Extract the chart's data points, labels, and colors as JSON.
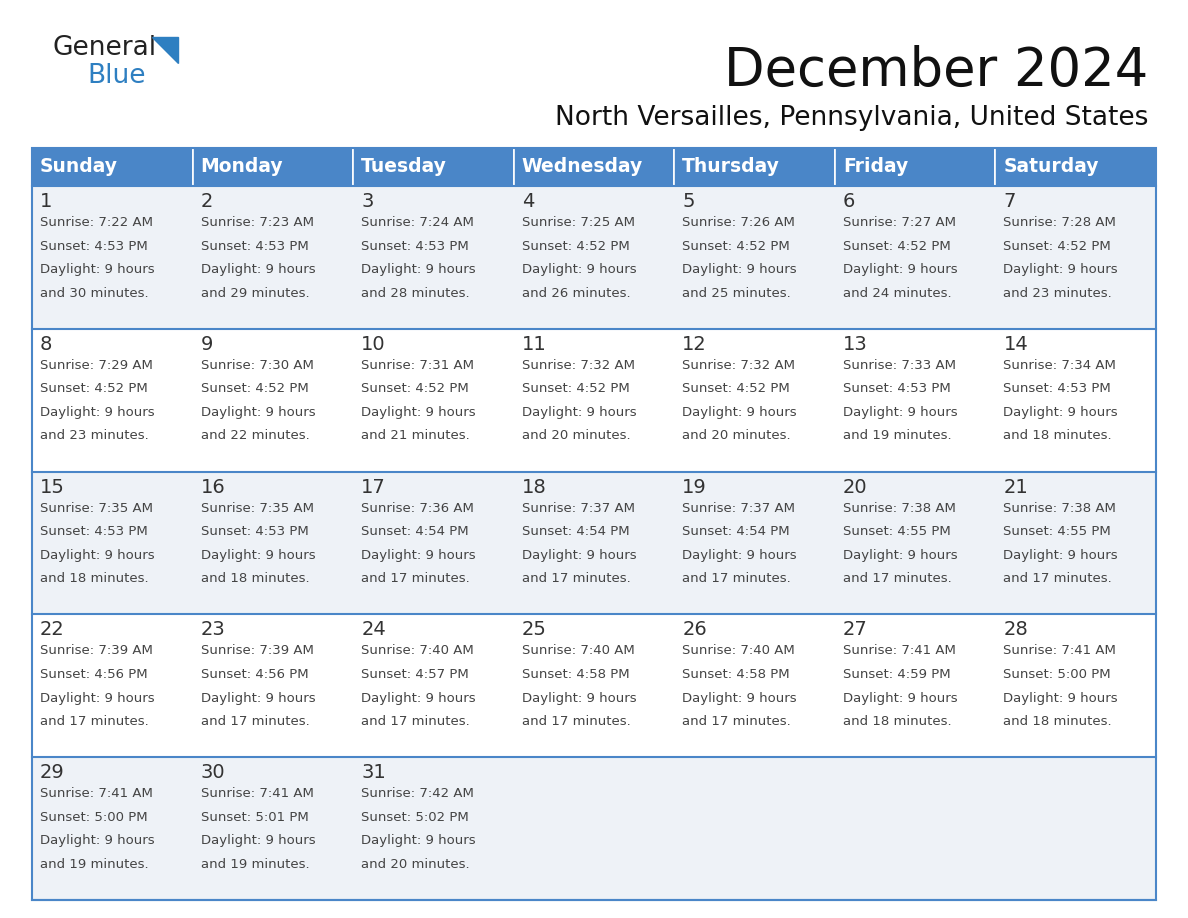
{
  "title": "December 2024",
  "subtitle": "North Versailles, Pennsylvania, United States",
  "days_of_week": [
    "Sunday",
    "Monday",
    "Tuesday",
    "Wednesday",
    "Thursday",
    "Friday",
    "Saturday"
  ],
  "header_bg_color": "#4a86c8",
  "header_text_color": "#ffffff",
  "border_color": "#4a86c8",
  "day_num_color": "#333333",
  "cell_text_color": "#444444",
  "row_bg_colors": [
    "#eef2f7",
    "#ffffff",
    "#eef2f7",
    "#ffffff",
    "#eef2f7"
  ],
  "weeks": [
    [
      {
        "day": 1,
        "sunrise": "7:22 AM",
        "sunset": "4:53 PM",
        "daylight": "9 hours and 30 minutes."
      },
      {
        "day": 2,
        "sunrise": "7:23 AM",
        "sunset": "4:53 PM",
        "daylight": "9 hours and 29 minutes."
      },
      {
        "day": 3,
        "sunrise": "7:24 AM",
        "sunset": "4:53 PM",
        "daylight": "9 hours and 28 minutes."
      },
      {
        "day": 4,
        "sunrise": "7:25 AM",
        "sunset": "4:52 PM",
        "daylight": "9 hours and 26 minutes."
      },
      {
        "day": 5,
        "sunrise": "7:26 AM",
        "sunset": "4:52 PM",
        "daylight": "9 hours and 25 minutes."
      },
      {
        "day": 6,
        "sunrise": "7:27 AM",
        "sunset": "4:52 PM",
        "daylight": "9 hours and 24 minutes."
      },
      {
        "day": 7,
        "sunrise": "7:28 AM",
        "sunset": "4:52 PM",
        "daylight": "9 hours and 23 minutes."
      }
    ],
    [
      {
        "day": 8,
        "sunrise": "7:29 AM",
        "sunset": "4:52 PM",
        "daylight": "9 hours and 23 minutes."
      },
      {
        "day": 9,
        "sunrise": "7:30 AM",
        "sunset": "4:52 PM",
        "daylight": "9 hours and 22 minutes."
      },
      {
        "day": 10,
        "sunrise": "7:31 AM",
        "sunset": "4:52 PM",
        "daylight": "9 hours and 21 minutes."
      },
      {
        "day": 11,
        "sunrise": "7:32 AM",
        "sunset": "4:52 PM",
        "daylight": "9 hours and 20 minutes."
      },
      {
        "day": 12,
        "sunrise": "7:32 AM",
        "sunset": "4:52 PM",
        "daylight": "9 hours and 20 minutes."
      },
      {
        "day": 13,
        "sunrise": "7:33 AM",
        "sunset": "4:53 PM",
        "daylight": "9 hours and 19 minutes."
      },
      {
        "day": 14,
        "sunrise": "7:34 AM",
        "sunset": "4:53 PM",
        "daylight": "9 hours and 18 minutes."
      }
    ],
    [
      {
        "day": 15,
        "sunrise": "7:35 AM",
        "sunset": "4:53 PM",
        "daylight": "9 hours and 18 minutes."
      },
      {
        "day": 16,
        "sunrise": "7:35 AM",
        "sunset": "4:53 PM",
        "daylight": "9 hours and 18 minutes."
      },
      {
        "day": 17,
        "sunrise": "7:36 AM",
        "sunset": "4:54 PM",
        "daylight": "9 hours and 17 minutes."
      },
      {
        "day": 18,
        "sunrise": "7:37 AM",
        "sunset": "4:54 PM",
        "daylight": "9 hours and 17 minutes."
      },
      {
        "day": 19,
        "sunrise": "7:37 AM",
        "sunset": "4:54 PM",
        "daylight": "9 hours and 17 minutes."
      },
      {
        "day": 20,
        "sunrise": "7:38 AM",
        "sunset": "4:55 PM",
        "daylight": "9 hours and 17 minutes."
      },
      {
        "day": 21,
        "sunrise": "7:38 AM",
        "sunset": "4:55 PM",
        "daylight": "9 hours and 17 minutes."
      }
    ],
    [
      {
        "day": 22,
        "sunrise": "7:39 AM",
        "sunset": "4:56 PM",
        "daylight": "9 hours and 17 minutes."
      },
      {
        "day": 23,
        "sunrise": "7:39 AM",
        "sunset": "4:56 PM",
        "daylight": "9 hours and 17 minutes."
      },
      {
        "day": 24,
        "sunrise": "7:40 AM",
        "sunset": "4:57 PM",
        "daylight": "9 hours and 17 minutes."
      },
      {
        "day": 25,
        "sunrise": "7:40 AM",
        "sunset": "4:58 PM",
        "daylight": "9 hours and 17 minutes."
      },
      {
        "day": 26,
        "sunrise": "7:40 AM",
        "sunset": "4:58 PM",
        "daylight": "9 hours and 17 minutes."
      },
      {
        "day": 27,
        "sunrise": "7:41 AM",
        "sunset": "4:59 PM",
        "daylight": "9 hours and 18 minutes."
      },
      {
        "day": 28,
        "sunrise": "7:41 AM",
        "sunset": "5:00 PM",
        "daylight": "9 hours and 18 minutes."
      }
    ],
    [
      {
        "day": 29,
        "sunrise": "7:41 AM",
        "sunset": "5:00 PM",
        "daylight": "9 hours and 19 minutes."
      },
      {
        "day": 30,
        "sunrise": "7:41 AM",
        "sunset": "5:01 PM",
        "daylight": "9 hours and 19 minutes."
      },
      {
        "day": 31,
        "sunrise": "7:42 AM",
        "sunset": "5:02 PM",
        "daylight": "9 hours and 20 minutes."
      },
      null,
      null,
      null,
      null
    ]
  ]
}
